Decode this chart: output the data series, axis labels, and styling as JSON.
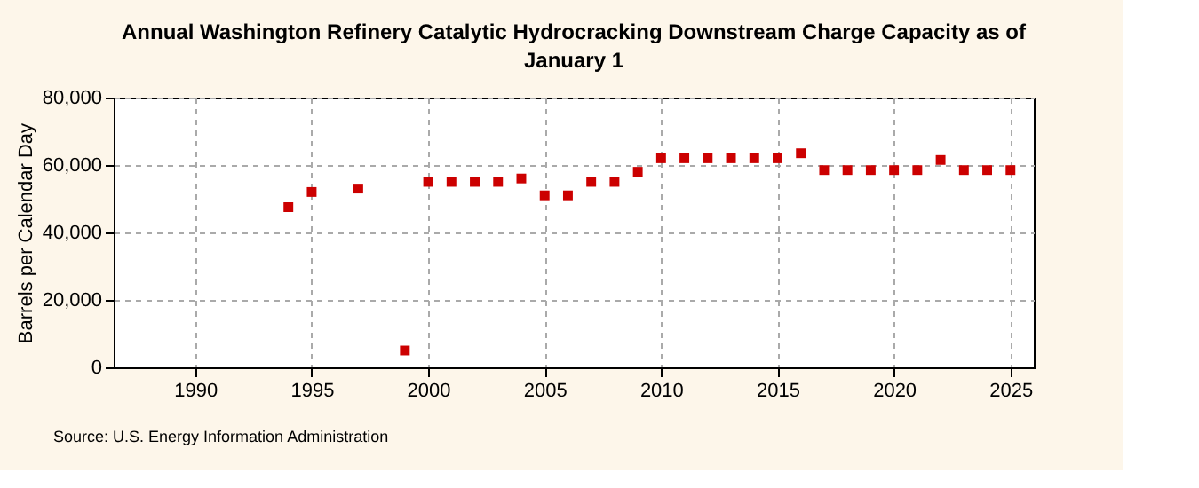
{
  "chart_data": {
    "type": "scatter",
    "title": "Annual Washington Refinery Catalytic Hydrocracking Downstream Charge Capacity as of January 1",
    "ylabel": "Barrels per Calendar Day",
    "annotations": [
      "Source: U.S. Energy Information Administration"
    ],
    "x": [
      1994,
      1995,
      1997,
      1999,
      2000,
      2001,
      2002,
      2003,
      2004,
      2005,
      2006,
      2007,
      2008,
      2009,
      2010,
      2011,
      2012,
      2013,
      2014,
      2015,
      2016,
      2017,
      2018,
      2019,
      2020,
      2021,
      2022,
      2023,
      2024,
      2025
    ],
    "series": [
      {
        "color": "#cc0000",
        "values": [
          47500,
          52000,
          53000,
          5000,
          55000,
          55000,
          55000,
          55000,
          56000,
          51000,
          51000,
          55000,
          55000,
          58000,
          62000,
          62000,
          62000,
          62000,
          62000,
          62000,
          63500,
          58500,
          58500,
          58500,
          58500,
          58500,
          61500,
          58500,
          58500,
          58500
        ]
      }
    ],
    "xlim": [
      1986.5,
      2026
    ],
    "xticks": [
      1990,
      1995,
      2000,
      2005,
      2010,
      2015,
      2020,
      2025
    ],
    "ylim": [
      0,
      80000
    ],
    "yticks": [
      {
        "value": 0,
        "label": "0"
      },
      {
        "value": 20000,
        "label": "20,000"
      },
      {
        "value": 40000,
        "label": "40,000"
      },
      {
        "value": 60000,
        "label": "60,000"
      },
      {
        "value": 80000,
        "label": "80,000"
      }
    ],
    "grid": true,
    "marker": "square"
  }
}
